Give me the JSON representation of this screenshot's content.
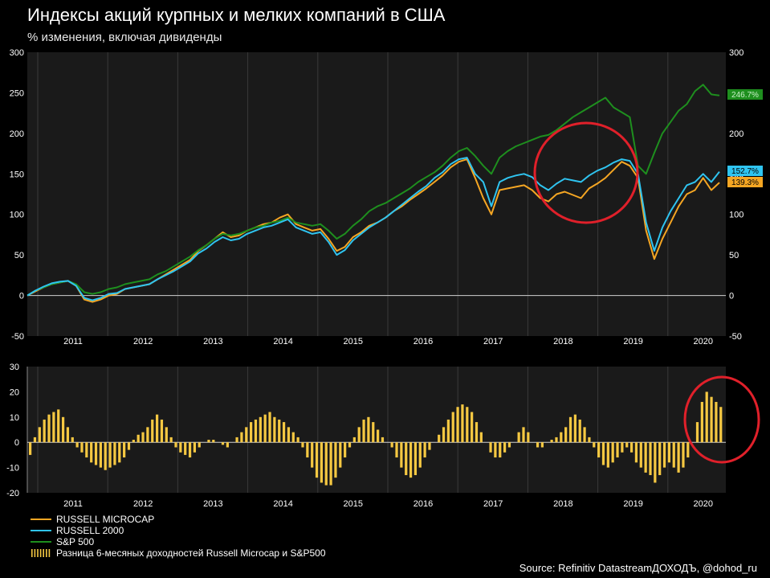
{
  "title": "Индексы акций курпных и мелких компаний в США",
  "subtitle": "% изменения, включая дивиденды",
  "source": "Source: Refinitiv DatastreamДОХОДЪ, @dohod_ru",
  "chart_data": [
    {
      "type": "line",
      "x_labels": [
        "2011",
        "2012",
        "2013",
        "2014",
        "2015",
        "2016",
        "2017",
        "2018",
        "2019",
        "2020"
      ],
      "ylim": [
        -50,
        300
      ],
      "y_ticks": [
        -50,
        0,
        50,
        100,
        150,
        200,
        250,
        300
      ],
      "grid": true,
      "legend": "bottom-left",
      "series": [
        {
          "name": "RUSSELL MICROCAP",
          "color": "#f5a623",
          "end_label": "139.3%",
          "values": [
            0,
            5,
            10,
            14,
            16,
            18,
            12,
            -5,
            -8,
            -5,
            0,
            2,
            8,
            10,
            12,
            14,
            20,
            26,
            32,
            38,
            44,
            55,
            62,
            70,
            78,
            72,
            74,
            80,
            84,
            88,
            90,
            96,
            100,
            88,
            84,
            80,
            82,
            70,
            55,
            60,
            72,
            78,
            86,
            90,
            96,
            104,
            110,
            118,
            125,
            132,
            140,
            148,
            158,
            165,
            168,
            145,
            120,
            100,
            130,
            132,
            134,
            136,
            130,
            120,
            116,
            125,
            128,
            124,
            120,
            132,
            138,
            145,
            155,
            165,
            160,
            145,
            80,
            45,
            70,
            90,
            110,
            125,
            130,
            145,
            130,
            139.3
          ]
        },
        {
          "name": "RUSSELL 2000",
          "color": "#2fc4f0",
          "end_label": "152.7%",
          "values": [
            0,
            6,
            11,
            15,
            17,
            18,
            12,
            -3,
            -6,
            -3,
            2,
            3,
            8,
            10,
            12,
            14,
            20,
            25,
            30,
            36,
            42,
            52,
            58,
            66,
            72,
            68,
            70,
            76,
            80,
            84,
            86,
            90,
            94,
            84,
            80,
            76,
            78,
            66,
            50,
            56,
            68,
            76,
            84,
            90,
            96,
            104,
            112,
            120,
            128,
            135,
            145,
            152,
            162,
            168,
            170,
            150,
            140,
            110,
            140,
            145,
            148,
            150,
            146,
            136,
            130,
            138,
            144,
            142,
            140,
            148,
            154,
            158,
            164,
            168,
            166,
            150,
            90,
            55,
            84,
            104,
            120,
            136,
            140,
            150,
            140,
            152.7
          ]
        },
        {
          "name": "S&P 500",
          "color": "#1e8f1e",
          "end_label": "246.7%",
          "values": [
            0,
            6,
            10,
            14,
            16,
            18,
            14,
            4,
            2,
            4,
            8,
            10,
            14,
            16,
            18,
            20,
            26,
            30,
            36,
            42,
            48,
            56,
            62,
            70,
            76,
            74,
            76,
            80,
            84,
            86,
            90,
            92,
            96,
            90,
            88,
            86,
            88,
            80,
            70,
            76,
            86,
            94,
            104,
            110,
            114,
            120,
            126,
            132,
            140,
            146,
            152,
            160,
            170,
            178,
            182,
            172,
            160,
            150,
            170,
            178,
            184,
            188,
            192,
            196,
            198,
            204,
            212,
            220,
            226,
            232,
            238,
            244,
            232,
            226,
            220,
            160,
            150,
            176,
            200,
            214,
            228,
            236,
            252,
            260,
            248,
            246.7
          ]
        }
      ]
    },
    {
      "type": "bar",
      "x_labels": [
        "2011",
        "2012",
        "2013",
        "2014",
        "2015",
        "2016",
        "2017",
        "2018",
        "2019",
        "2020"
      ],
      "ylim": [
        -20,
        30
      ],
      "y_ticks": [
        -20,
        -10,
        0,
        10,
        20,
        30
      ],
      "grid": true,
      "series": [
        {
          "name": "Разница 6-месяных доходностей Russell Microcap и S&P500",
          "color": "#f5c842",
          "values": [
            -5,
            2,
            6,
            9,
            11,
            12,
            13,
            10,
            6,
            2,
            -2,
            -4,
            -6,
            -8,
            -9,
            -10,
            -11,
            -10,
            -9,
            -8,
            -6,
            -3,
            1,
            3,
            4,
            6,
            9,
            11,
            9,
            6,
            2,
            -2,
            -4,
            -5,
            -6,
            -4,
            -2,
            0,
            1,
            1,
            0,
            -1,
            -2,
            0,
            2,
            4,
            6,
            8,
            9,
            10,
            11,
            12,
            10,
            9,
            8,
            6,
            4,
            2,
            -2,
            -6,
            -10,
            -14,
            -16,
            -17,
            -17,
            -14,
            -10,
            -6,
            -2,
            2,
            6,
            9,
            10,
            8,
            5,
            2,
            0,
            -2,
            -6,
            -10,
            -13,
            -14,
            -13,
            -10,
            -6,
            -3,
            0,
            3,
            6,
            9,
            12,
            14,
            15,
            14,
            12,
            8,
            4,
            0,
            -4,
            -6,
            -6,
            -4,
            -2,
            0,
            4,
            6,
            4,
            0,
            -2,
            -2,
            0,
            1,
            2,
            4,
            6,
            10,
            11,
            9,
            6,
            2,
            -2,
            -6,
            -9,
            -10,
            -8,
            -6,
            -4,
            -2,
            -4,
            -8,
            -10,
            -12,
            -13,
            -16,
            -13,
            -10,
            -8,
            -10,
            -12,
            -10,
            -6,
            0,
            8,
            16,
            20,
            18,
            16,
            14
          ]
        }
      ]
    }
  ],
  "right_labels": [
    "246.7%",
    "152.7%",
    "139.3%"
  ]
}
